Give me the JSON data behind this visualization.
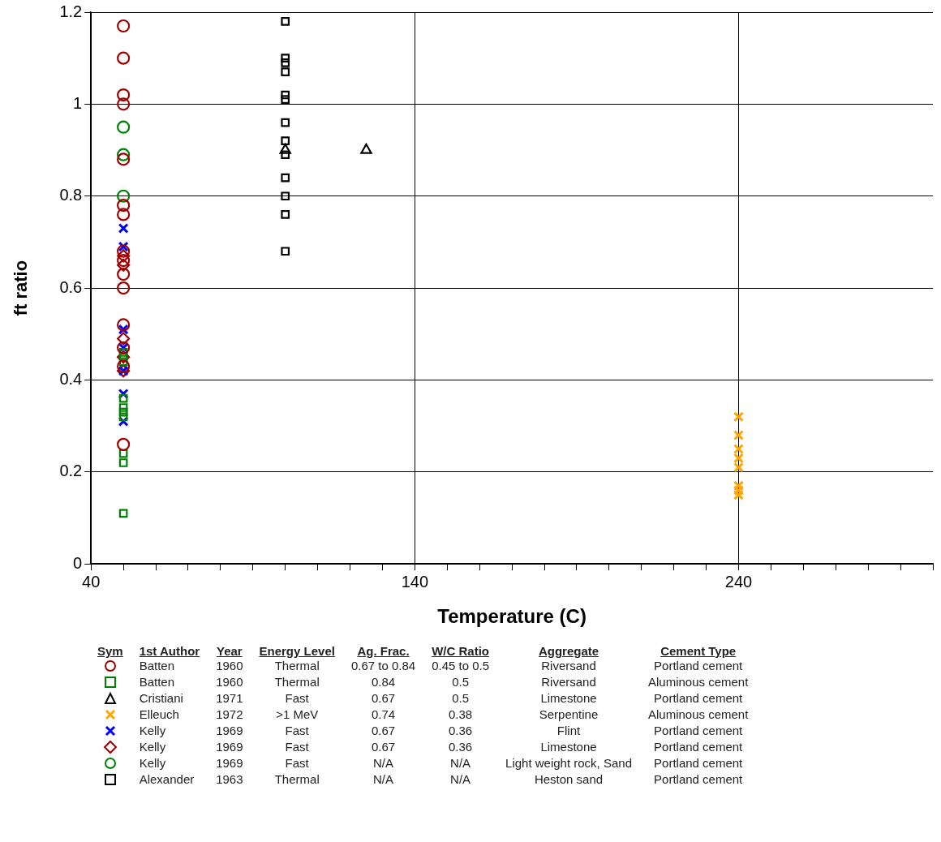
{
  "chart_data": {
    "type": "scatter",
    "xlabel": "Temperature (C)",
    "ylabel": "ft ratio",
    "xlim": [
      40,
      300
    ],
    "ylim": [
      0,
      1.2
    ],
    "xticks": [
      40,
      {
        "value": 50,
        "label": null
      },
      {
        "value": 60,
        "label": null
      },
      {
        "value": 70,
        "label": null
      },
      {
        "value": 80,
        "label": null
      },
      {
        "value": 90,
        "label": null
      },
      {
        "value": 100,
        "label": null
      },
      {
        "value": 110,
        "label": null
      },
      {
        "value": 120,
        "label": null
      },
      {
        "value": 130,
        "label": null
      },
      140,
      {
        "value": 150,
        "label": null
      },
      {
        "value": 160,
        "label": null
      },
      {
        "value": 170,
        "label": null
      },
      {
        "value": 180,
        "label": null
      },
      {
        "value": 190,
        "label": null
      },
      {
        "value": 200,
        "label": null
      },
      {
        "value": 210,
        "label": null
      },
      {
        "value": 220,
        "label": null
      },
      {
        "value": 230,
        "label": null
      },
      240,
      {
        "value": 250,
        "label": null
      },
      {
        "value": 260,
        "label": null
      },
      {
        "value": 270,
        "label": null
      },
      {
        "value": 280,
        "label": null
      },
      {
        "value": 290,
        "label": null
      },
      {
        "value": 300,
        "label": null
      }
    ],
    "yticks": [
      0,
      0.2,
      0.4,
      0.6,
      0.8,
      1,
      1.2
    ],
    "grid": true,
    "legend": "bottom",
    "series": [
      {
        "name": "Batten",
        "color": "#a00000",
        "marker": "circle",
        "x": [
          50,
          50,
          50,
          50,
          50,
          50,
          50,
          50,
          50,
          50,
          50,
          50,
          50,
          50,
          50
        ],
        "values": [
          1.17,
          1.1,
          1.02,
          1.0,
          0.88,
          0.78,
          0.76,
          0.68,
          0.66,
          0.63,
          0.6,
          0.52,
          0.47,
          0.43,
          0.26
        ]
      },
      {
        "name": "Batten",
        "color": "#008000",
        "marker": "square",
        "x": [
          50,
          50,
          50,
          50,
          50,
          50,
          50,
          50,
          50,
          50
        ],
        "values": [
          0.46,
          0.45,
          0.44,
          0.36,
          0.34,
          0.33,
          0.32,
          0.24,
          0.22,
          0.11
        ]
      },
      {
        "name": "Cristiani",
        "color": "#000000",
        "marker": "triangle",
        "x": [
          100,
          125
        ],
        "values": [
          0.9,
          0.9
        ]
      },
      {
        "name": "Elleuch",
        "color": "#ffa500",
        "marker": "cross",
        "x": [
          240,
          240,
          240,
          240,
          240,
          240,
          240,
          240
        ],
        "values": [
          0.32,
          0.28,
          0.25,
          0.23,
          0.21,
          0.17,
          0.16,
          0.15
        ]
      },
      {
        "name": "Kelly",
        "color": "#0000ff",
        "marker": "cross",
        "x": [
          50,
          50,
          50,
          50,
          50,
          50,
          50
        ],
        "values": [
          0.73,
          0.69,
          0.51,
          0.47,
          0.42,
          0.37,
          0.31
        ]
      },
      {
        "name": "Kelly",
        "color": "#a00000",
        "marker": "diamond",
        "x": [
          50,
          50,
          50,
          50,
          50
        ],
        "values": [
          0.67,
          0.65,
          0.49,
          0.45,
          0.42
        ]
      },
      {
        "name": "Kelly",
        "color": "#008000",
        "marker": "circle",
        "x": [
          50,
          50,
          50
        ],
        "values": [
          0.95,
          0.89,
          0.8
        ]
      },
      {
        "name": "Alexander",
        "color": "#000000",
        "marker": "square",
        "x": [
          100,
          100,
          100,
          100,
          100,
          100,
          100,
          100,
          100,
          100,
          100,
          100,
          100
        ],
        "values": [
          1.18,
          1.1,
          1.09,
          1.07,
          1.02,
          1.01,
          0.96,
          0.92,
          0.89,
          0.84,
          0.8,
          0.76,
          0.68
        ]
      }
    ],
    "annotations": [
      "Sym",
      "1st Author",
      "Year",
      "Energy Level",
      "Ag. Frac.",
      "W/C Ratio",
      "Aggregate",
      "Cement Type",
      "1960",
      "Thermal",
      "0.67 to 0.84",
      "0.45 to 0.5",
      "Riversand",
      "Portland cement",
      "1960",
      "Thermal",
      "0.84",
      "0.5",
      "Riversand",
      "Aluminous cement",
      "1971",
      "Fast",
      "0.67",
      "0.5",
      "Limestone",
      "Portland cement",
      "1972",
      ">1 MeV",
      "0.74",
      "0.38",
      "Serpentine",
      "Aluminous cement",
      "1969",
      "Fast",
      "0.67",
      "0.36",
      "Flint",
      "Portland cement",
      "1969",
      "Fast",
      "0.67",
      "0.36",
      "Limestone",
      "Portland cement",
      "1969",
      "Fast",
      "N/A",
      "N/A",
      "Light weight rock, Sand",
      "Portland cement",
      "1963",
      "Thermal",
      "N/A",
      "N/A",
      "Heston sand",
      "Portland cement"
    ]
  }
}
